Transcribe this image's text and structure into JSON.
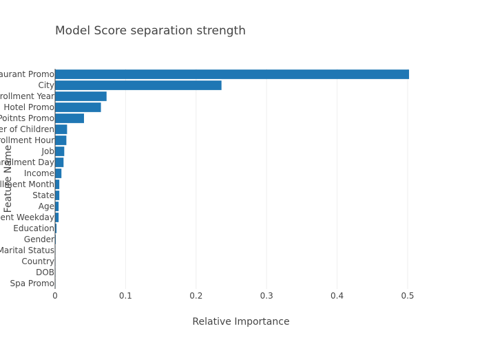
{
  "chart_data": {
    "type": "bar",
    "orientation": "horizontal",
    "title": "Model Score separation strength",
    "xlabel": "Relative Importance",
    "ylabel": "Feature Name",
    "xlim": [
      0,
      0.52
    ],
    "xticks": [
      0,
      0.1,
      0.2,
      0.3,
      0.4,
      0.5
    ],
    "xtick_labels": [
      "0",
      "0.1",
      "0.2",
      "0.3",
      "0.4",
      "0.5"
    ],
    "categories": [
      "Restaurant Promo",
      "City",
      "Enrollment Year",
      "Hotel Promo",
      "Poitnts Promo",
      "Number of Children",
      "Enrollment Hour",
      "Job",
      "Enrollment Day",
      "Income",
      "Enrollment Month",
      "State",
      "Age",
      "Enrollment Weekday",
      "Education",
      "Gender",
      "Marital Status",
      "Country",
      "DOB",
      "Spa Promo"
    ],
    "values": [
      0.502,
      0.236,
      0.073,
      0.065,
      0.041,
      0.017,
      0.016,
      0.013,
      0.012,
      0.009,
      0.006,
      0.006,
      0.005,
      0.005,
      0.002,
      0.001,
      0.0005,
      0.0003,
      0.0002,
      0.0001
    ],
    "bar_color": "#1f77b4",
    "grid": "vertical",
    "legend": "none"
  }
}
